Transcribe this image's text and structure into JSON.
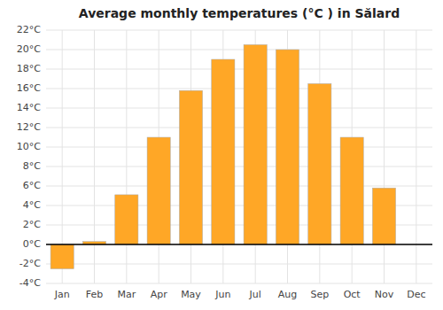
{
  "chart_data": {
    "type": "bar",
    "title": "Average monthly temperatures (°C ) in Sălard",
    "categories": [
      "Jan",
      "Feb",
      "Mar",
      "Apr",
      "May",
      "Jun",
      "Jul",
      "Aug",
      "Sep",
      "Oct",
      "Nov",
      "Dec"
    ],
    "values": [
      -2.5,
      0.3,
      5.1,
      11.0,
      15.8,
      19.0,
      20.5,
      20.0,
      16.5,
      11.0,
      5.8,
      0.0
    ],
    "color": "#FFA726",
    "ylim": [
      -4,
      22
    ],
    "yticks": [
      {
        "value": -4,
        "label": "-4°C"
      },
      {
        "value": -2,
        "label": "-2°C"
      },
      {
        "value": 0,
        "label": "0°C"
      },
      {
        "value": 2,
        "label": "2°C"
      },
      {
        "value": 4,
        "label": "4°C"
      },
      {
        "value": 6,
        "label": "6°C"
      },
      {
        "value": 8,
        "label": "8°C"
      },
      {
        "value": 10,
        "label": "10°C"
      },
      {
        "value": 12,
        "label": "12°C"
      },
      {
        "value": 14,
        "label": "14°C"
      },
      {
        "value": 16,
        "label": "16°C"
      },
      {
        "value": 18,
        "label": "18°C"
      },
      {
        "value": 20,
        "label": "20°C"
      },
      {
        "value": 22,
        "label": "22°C"
      }
    ],
    "grid": true
  }
}
